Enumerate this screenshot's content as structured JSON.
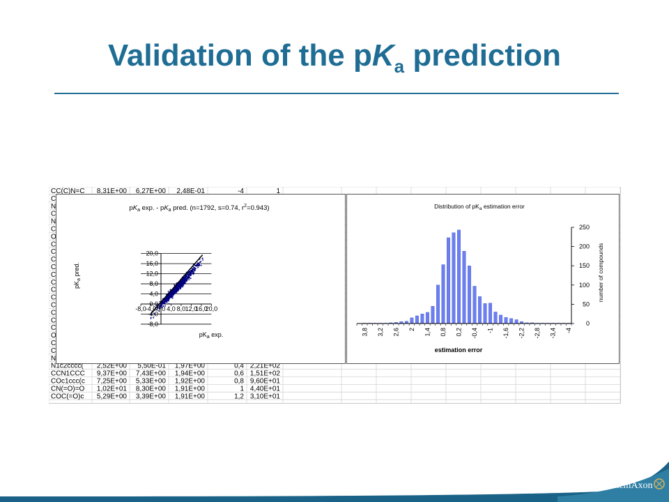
{
  "slide": {
    "title_prefix": "Validation of the p",
    "title_italic": "K",
    "title_sub": "a",
    "title_suffix": " prediction",
    "brand": "ChemAxon"
  },
  "colors": {
    "title": "#1f6d94",
    "series": "#000080",
    "bars": "#6b7ff0",
    "band_dark": "#0f4f6f",
    "band_light": "#3f91b5"
  },
  "sheet": {
    "first_col": [
      "CC(C)N=C",
      "Cc",
      "Nc",
      "Cc",
      "Nc",
      "Cl",
      "Oc",
      "Cc",
      "Cc",
      "Cc",
      "Cl",
      "Cc",
      "Cc",
      "Cc",
      "Cc",
      "Cl",
      "Cc",
      "Cc",
      "Cc",
      "Oc",
      "Cc",
      "Cc",
      "Nc",
      "N1c2cccc(",
      "CCN1CCC",
      "COc1ccc(c",
      "CN(=O)=O",
      "COC(=O)c"
    ],
    "rows": [
      [
        "N1c2cccc(",
        "2,52E+00",
        "5,50E-01",
        "1,97E+00",
        "0,4",
        "2,21E+02"
      ],
      [
        "CCN1CCC",
        "9,37E+00",
        "7,43E+00",
        "1,94E+00",
        "0,6",
        "1,51E+02"
      ],
      [
        "COc1ccc(c",
        "7,25E+00",
        "5,33E+00",
        "1,92E+00",
        "0,8",
        "9,60E+01"
      ],
      [
        "CN(=O)=O",
        "1,02E+01",
        "8,30E+00",
        "1,91E+00",
        "1",
        "4,40E+01"
      ],
      [
        "COC(=O)c",
        "5,29E+00",
        "3,39E+00",
        "1,91E+00",
        "1,2",
        "3,10E+01"
      ]
    ],
    "top_row": [
      "CC(C)N=C",
      "8,31E+00",
      "6,27E+00",
      "2,48E-01",
      "-4",
      "1"
    ]
  },
  "chart_data": [
    {
      "type": "scatter",
      "title": "pKa exp. - pKa pred. (n=1792, s=0.74, r²=0.943)",
      "title_parts": {
        "a": "p",
        "b": "K",
        "c": "a",
        "d": " exp.  - p",
        "e": "K",
        "f": "a",
        "g": " pred.  (n=1792,  s=0.74,  r",
        "h": "2",
        "i": "=0.943)"
      },
      "xlabel": "pKa exp.",
      "ylabel": "pKa pred.",
      "xlim": [
        -8,
        20
      ],
      "ylim": [
        -8,
        20
      ],
      "x_ticks": [
        "-8,0",
        "-4,0",
        "0,0",
        "4,0",
        "8,0",
        "12,0",
        "16,0",
        "20,0"
      ],
      "y_ticks": [
        "20,0",
        "16,0",
        "12,0",
        "8,0",
        "4,0",
        "0,0",
        "-4,0",
        "-8,0"
      ],
      "x_tick_values": [
        -8,
        -4,
        0,
        4,
        8,
        12,
        16,
        20
      ],
      "y_tick_values": [
        20,
        16,
        12,
        8,
        4,
        0,
        -4,
        -8
      ],
      "fit_line": {
        "x": [
          -4,
          16.5
        ],
        "y": [
          -3.8,
          19.5
        ]
      },
      "grid": true,
      "n_points": 1792,
      "points_note": "dense cloud along y = x, from about x=-4 to x=16"
    },
    {
      "type": "bar",
      "title": "Distribution of pKa estimation error",
      "xlabel": "estimation error",
      "ylabel": "number of compounds",
      "ylim": [
        0,
        250
      ],
      "y_ticks": [
        "250",
        "200",
        "150",
        "100",
        "50",
        "0"
      ],
      "y_tick_values": [
        250,
        200,
        150,
        100,
        50,
        0
      ],
      "x_tick_labels": [
        "3,8",
        "3,2",
        "2,6",
        "2",
        "1,4",
        "0,8",
        "0,2",
        "-0,4",
        "-1",
        "-1,6",
        "-2,2",
        "-2,8",
        "-3,4",
        "-4"
      ],
      "categories": [
        "4",
        "3,8",
        "3,6",
        "3,4",
        "3,2",
        "3",
        "2,8",
        "2,6",
        "2,4",
        "2,2",
        "2",
        "1,8",
        "1,6",
        "1,4",
        "1,2",
        "1",
        "0,8",
        "0,6",
        "0,4",
        "0,2",
        "0",
        "-0,2",
        "-0,4",
        "-0,6",
        "-0,8",
        "-1",
        "-1,2",
        "-1,4",
        "-1,6",
        "-1,8",
        "-2",
        "-2,2",
        "-2,4",
        "-2,6",
        "-2,8",
        "-3",
        "-3,2",
        "-3,4",
        "-3,6",
        "-3,8",
        "-4"
      ],
      "values": [
        0,
        1,
        1,
        1,
        1,
        1,
        2,
        3,
        5,
        6,
        15,
        20,
        25,
        29,
        45,
        100,
        153,
        223,
        236,
        243,
        188,
        150,
        97,
        70,
        52,
        53,
        30,
        22,
        16,
        13,
        10,
        5,
        2,
        2,
        1,
        1,
        1,
        1,
        1,
        1,
        1
      ]
    }
  ]
}
